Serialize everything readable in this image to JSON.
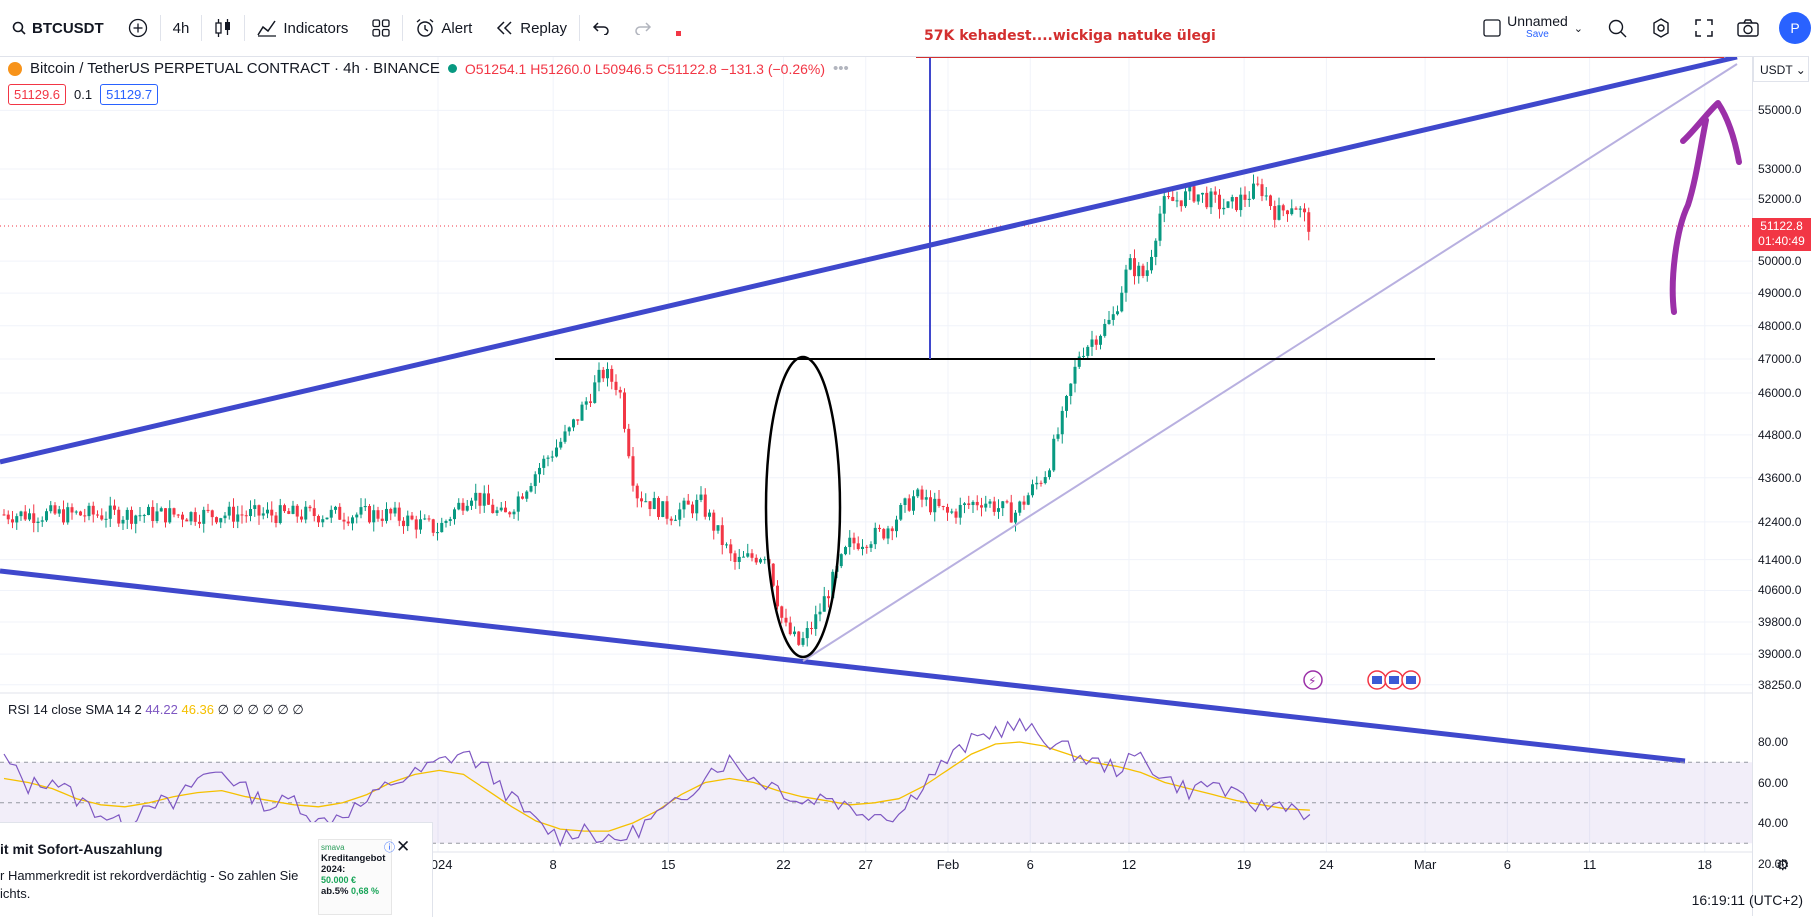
{
  "toolbar": {
    "symbol": "BTCUSDT",
    "interval": "4h",
    "indicators_label": "Indicators",
    "alert_label": "Alert",
    "replay_label": "Replay",
    "layout_name": "Unnamed",
    "save_label": "Save",
    "profile_initial": "P"
  },
  "legend": {
    "title": "Bitcoin / TetherUS PERPETUAL CONTRACT · 4h · BINANCE",
    "open": "O51254.1",
    "high": "H51260.0",
    "low": "L50946.5",
    "close": "C51122.8",
    "change": "−131.3 (−0.26%)",
    "sell_price": "51129.6",
    "spread": "0.1",
    "buy_price": "51129.7"
  },
  "annotation_text": "57K kehadest....wickiga natuke ülegi",
  "rsi_legend": {
    "label": "RSI 14 close SMA 14 2",
    "rsi_value": "44.22",
    "sma_value": "46.36",
    "extra": "∅ ∅ ∅ ∅ ∅ ∅"
  },
  "axis": {
    "currency": "USDT",
    "current_price": "51122.8",
    "countdown": "01:40:49",
    "clock": "16:19:11 (UTC+2)"
  },
  "ad": {
    "title": "it mit Sofort-Auszahlung",
    "text": "r Hammerkredit ist rekordverdächtig - So zahlen Sie ichts.",
    "brand": "smava",
    "img_title": "Kreditangebot 2024:",
    "img_amount": "50.000 €",
    "img_rate_prefix": "ab.5%",
    "img_rate": "0,68 %"
  },
  "colors": {
    "up": "#089981",
    "down": "#f23645",
    "trendline": "#3f48cc",
    "light_trendline": "#b8b0e0",
    "rsi": "#7e57c2",
    "rsi_sma": "#f5c000",
    "annotation": "#d32f2f",
    "arrow": "#9b30a8"
  },
  "chart_data": [
    {
      "type": "candlestick",
      "title": "Bitcoin / TetherUS PERPETUAL CONTRACT · 4h · BINANCE",
      "x_ticks": [
        "2024",
        "8",
        "15",
        "22",
        "27",
        "Feb",
        "6",
        "12",
        "19",
        "24",
        "Mar",
        "6",
        "11",
        "18"
      ],
      "y_ticks": [
        "55000.0",
        "53000.0",
        "52000.0",
        "50000.0",
        "49000.0",
        "48000.0",
        "47000.0",
        "46000.0",
        "44800.0",
        "43600.0",
        "42400.0",
        "41400.0",
        "40600.0",
        "39800.0",
        "39000.0",
        "38250.0"
      ],
      "ylim": [
        38250,
        56000
      ],
      "scale": "log",
      "price_path_date_close": [
        [
          "2023-12-29",
          42600
        ],
        [
          "2024-01-01",
          42200
        ],
        [
          "2024-01-03",
          43200
        ],
        [
          "2024-01-05",
          42500
        ],
        [
          "2024-01-07",
          43800
        ],
        [
          "2024-01-09",
          44900
        ],
        [
          "2024-01-11",
          46600
        ],
        [
          "2024-01-12",
          46200
        ],
        [
          "2024-01-13",
          43200
        ],
        [
          "2024-01-15",
          42600
        ],
        [
          "2024-01-17",
          42900
        ],
        [
          "2024-01-19",
          41300
        ],
        [
          "2024-01-21",
          41600
        ],
        [
          "2024-01-22",
          39700
        ],
        [
          "2024-01-23",
          39200
        ],
        [
          "2024-01-24",
          39900
        ],
        [
          "2024-01-26",
          41800
        ],
        [
          "2024-01-28",
          42100
        ],
        [
          "2024-01-30",
          43100
        ],
        [
          "2024-02-01",
          42600
        ],
        [
          "2024-02-03",
          43000
        ],
        [
          "2024-02-05",
          42600
        ],
        [
          "2024-02-07",
          43800
        ],
        [
          "2024-02-08",
          45300
        ],
        [
          "2024-02-09",
          47200
        ],
        [
          "2024-02-10",
          47700
        ],
        [
          "2024-02-11",
          48200
        ],
        [
          "2024-02-12",
          49900
        ],
        [
          "2024-02-13",
          49500
        ],
        [
          "2024-02-14",
          51800
        ],
        [
          "2024-02-16",
          52200
        ],
        [
          "2024-02-18",
          51700
        ],
        [
          "2024-02-20",
          52400
        ],
        [
          "2024-02-21",
          51500
        ],
        [
          "2024-02-22",
          51900
        ],
        [
          "2024-02-23",
          51122.8
        ]
      ],
      "horizontal_level": 47000,
      "target_level": 57000,
      "ellipse_label_x": "2024-01-22"
    },
    {
      "type": "line",
      "title": "RSI 14 close SMA 14 2",
      "y_ticks": [
        "80.00",
        "60.00",
        "40.00",
        "20.00"
      ],
      "ylim": [
        15,
        90
      ],
      "band": [
        30,
        70
      ],
      "series": [
        {
          "name": "RSI",
          "values": [
            72,
            58,
            62,
            52,
            45,
            38,
            52,
            48,
            62,
            66,
            56,
            48,
            52,
            40,
            45,
            50,
            60,
            64,
            70,
            75,
            66,
            52,
            40,
            33,
            38,
            30,
            35,
            44,
            50,
            65,
            71,
            62,
            58,
            50,
            54,
            47,
            45,
            44,
            60,
            71,
            80,
            86,
            88,
            82,
            76,
            70,
            67,
            73,
            62,
            56,
            60,
            52,
            48,
            50,
            44.22
          ]
        },
        {
          "name": "SMA",
          "values": [
            62,
            60,
            57,
            52,
            49,
            48,
            50,
            53,
            55,
            56,
            53,
            51,
            49,
            48,
            50,
            54,
            60,
            64,
            66,
            64,
            56,
            48,
            41,
            37,
            36,
            36,
            40,
            46,
            54,
            60,
            62,
            60,
            56,
            53,
            51,
            49,
            50,
            52,
            58,
            66,
            74,
            79,
            80,
            78,
            74,
            70,
            68,
            65,
            60,
            57,
            54,
            51,
            49,
            47,
            46.36
          ]
        }
      ]
    }
  ]
}
